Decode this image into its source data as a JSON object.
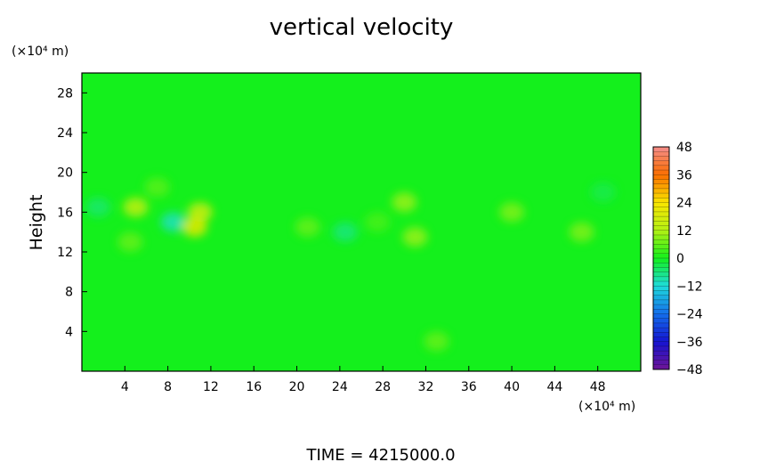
{
  "chart_data": {
    "type": "heatmap",
    "title": "vertical velocity",
    "ylabel": "Height",
    "y_unit": "(×10⁴ m)",
    "x_unit": "(×10⁴ m)",
    "xlim": [
      0,
      52
    ],
    "ylim": [
      0,
      30
    ],
    "x_ticks": [
      "4",
      "8",
      "12",
      "16",
      "20",
      "24",
      "28",
      "32",
      "36",
      "40",
      "44",
      "48"
    ],
    "y_ticks": [
      "4",
      "8",
      "12",
      "16",
      "20",
      "24",
      "28"
    ],
    "x_tick_values": [
      4,
      8,
      12,
      16,
      20,
      24,
      28,
      32,
      36,
      40,
      44,
      48
    ],
    "y_tick_values": [
      4,
      8,
      12,
      16,
      20,
      24,
      28
    ],
    "colorbar": {
      "range": [
        -48,
        48
      ],
      "ticks": [
        "48",
        "36",
        "24",
        "12",
        "0",
        "−12",
        "−24",
        "−36",
        "−48"
      ],
      "tick_values": [
        48,
        36,
        24,
        12,
        0,
        -12,
        -24,
        -36,
        -48
      ]
    },
    "background_value": 0,
    "features": [
      {
        "x": 5,
        "y": 16.5,
        "value": 14
      },
      {
        "x": 8.5,
        "y": 15,
        "value": -10
      },
      {
        "x": 11,
        "y": 16,
        "value": 16
      },
      {
        "x": 10.5,
        "y": 14.5,
        "value": 20
      },
      {
        "x": 4.5,
        "y": 13,
        "value": 6
      },
      {
        "x": 30,
        "y": 17,
        "value": 10
      },
      {
        "x": 31,
        "y": 13.5,
        "value": 10
      },
      {
        "x": 40,
        "y": 16,
        "value": 8
      },
      {
        "x": 46.5,
        "y": 14,
        "value": 8
      },
      {
        "x": 21,
        "y": 14.5,
        "value": 6
      },
      {
        "x": 33,
        "y": 3,
        "value": 6
      },
      {
        "x": 7,
        "y": 18.5,
        "value": 5
      },
      {
        "x": 27.5,
        "y": 15,
        "value": 4
      },
      {
        "x": 24.5,
        "y": 14,
        "value": -6
      },
      {
        "x": 1.5,
        "y": 16.5,
        "value": -5
      },
      {
        "x": 48.5,
        "y": 18,
        "value": -3
      }
    ],
    "footer": "TIME  =  4215000.0"
  }
}
